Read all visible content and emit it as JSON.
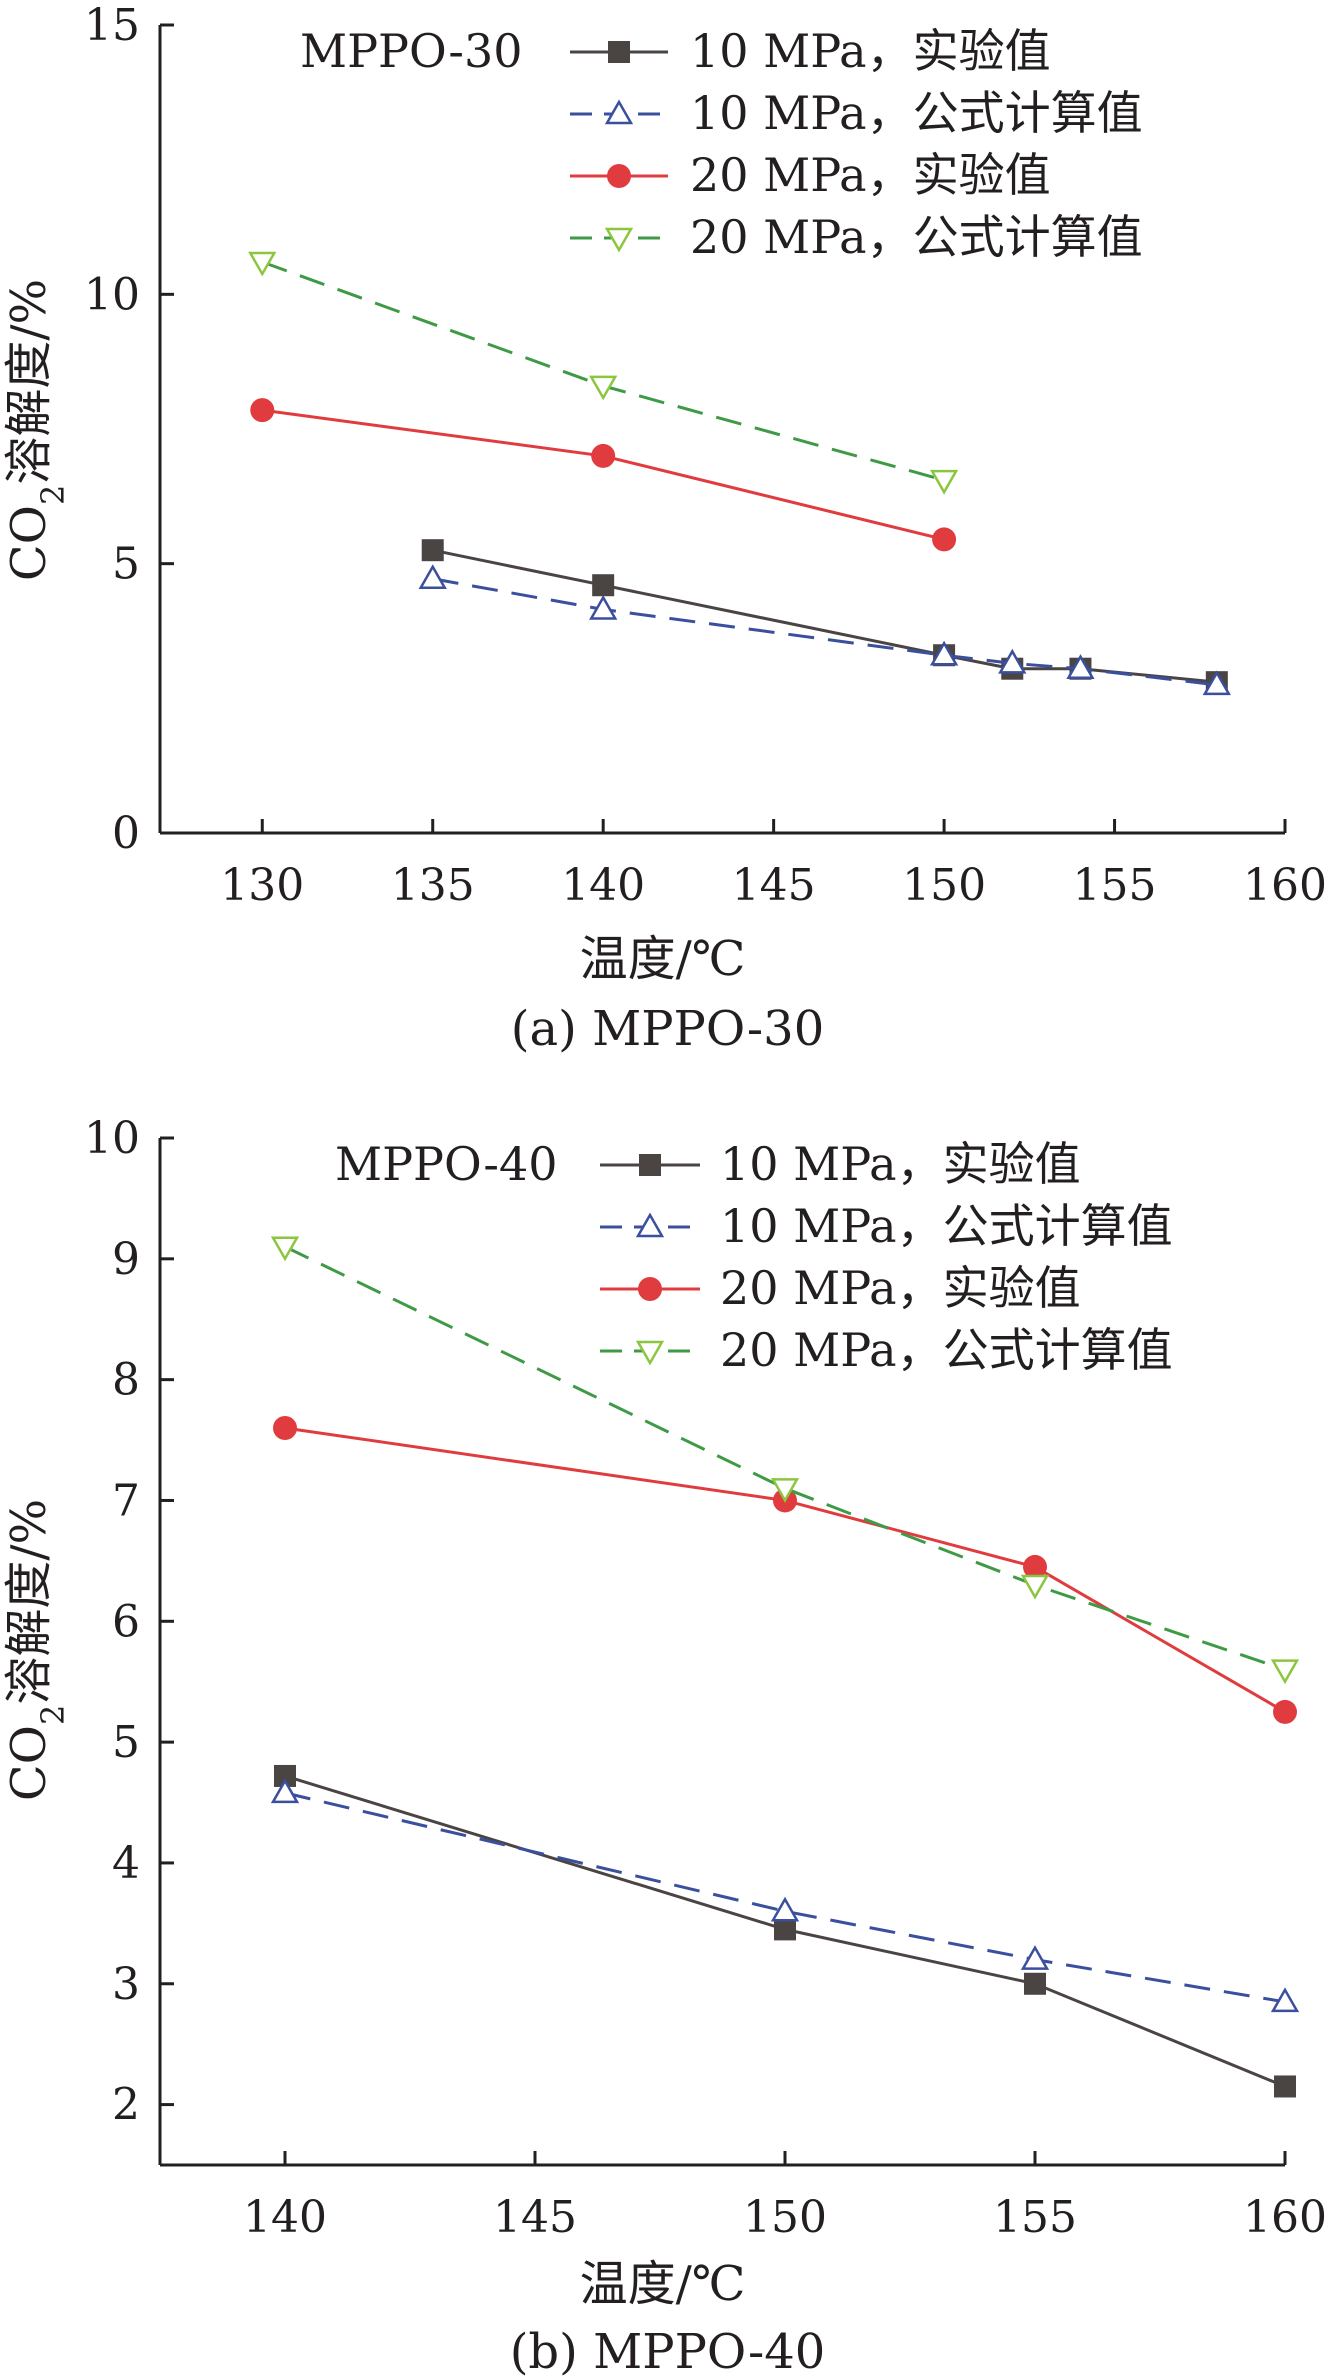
{
  "chart_data": [
    {
      "type": "line",
      "panel_label": "MPPO-30",
      "caption": "(a) MPPO-30",
      "xlabel": "温度/℃",
      "ylabel_main": "CO",
      "ylabel_sub": "2",
      "ylabel_rest": "溶解度/%",
      "xlim": [
        127,
        160
      ],
      "ylim": [
        0,
        15
      ],
      "xticks": [
        130,
        135,
        140,
        145,
        150,
        155,
        160
      ],
      "yticks": [
        0,
        5,
        10,
        15
      ],
      "grid": false,
      "legend_position": "top-right",
      "series": [
        {
          "name": "10 MPa，实验值",
          "color": "#4a4443",
          "dash": "solid",
          "marker": "square",
          "points": [
            [
              135,
              5.25
            ],
            [
              140,
              4.6
            ],
            [
              150,
              3.3
            ],
            [
              152,
              3.05
            ],
            [
              154,
              3.05
            ],
            [
              158,
              2.8
            ]
          ]
        },
        {
          "name": "10 MPa，公式计算值",
          "color": "#3a4f9e",
          "dash": "dashed",
          "marker": "triangle-up",
          "points": [
            [
              135,
              4.72
            ],
            [
              140,
              4.15
            ],
            [
              150,
              3.3
            ],
            [
              152,
              3.15
            ],
            [
              154,
              3.05
            ],
            [
              158,
              2.75
            ]
          ]
        },
        {
          "name": "20 MPa，实验值",
          "color": "#e03c3f",
          "dash": "solid",
          "marker": "circle",
          "points": [
            [
              130,
              7.85
            ],
            [
              140,
              7.0
            ],
            [
              150,
              5.45
            ]
          ]
        },
        {
          "name": "20 MPa，公式计算值",
          "color": "#3f9a46",
          "marker_color": "#8cc63f",
          "dash": "dashed",
          "marker": "triangle-down",
          "points": [
            [
              130,
              10.6
            ],
            [
              140,
              8.3
            ],
            [
              150,
              6.55
            ]
          ]
        }
      ]
    },
    {
      "type": "line",
      "panel_label": "MPPO-40",
      "caption": "(b) MPPO-40",
      "xlabel": "温度/℃",
      "ylabel_main": "CO",
      "ylabel_sub": "2",
      "ylabel_rest": "溶解度/%",
      "xlim": [
        137.5,
        160
      ],
      "ylim": [
        1.5,
        10
      ],
      "xticks": [
        140,
        145,
        150,
        155,
        160
      ],
      "yticks": [
        2,
        3,
        4,
        5,
        6,
        7,
        8,
        9,
        10
      ],
      "grid": false,
      "legend_position": "top-right",
      "series": [
        {
          "name": "10 MPa，实验值",
          "color": "#4a4443",
          "dash": "solid",
          "marker": "square",
          "points": [
            [
              140,
              4.72
            ],
            [
              150,
              3.45
            ],
            [
              155,
              3.0
            ],
            [
              160,
              2.15
            ]
          ]
        },
        {
          "name": "10 MPa，公式计算值",
          "color": "#3a4f9e",
          "dash": "dashed",
          "marker": "triangle-up",
          "points": [
            [
              140,
              4.58
            ],
            [
              150,
              3.6
            ],
            [
              155,
              3.2
            ],
            [
              160,
              2.85
            ]
          ]
        },
        {
          "name": "20 MPa，实验值",
          "color": "#e03c3f",
          "dash": "solid",
          "marker": "circle",
          "points": [
            [
              140,
              7.6
            ],
            [
              150,
              7.0
            ],
            [
              155,
              6.45
            ],
            [
              160,
              5.25
            ]
          ]
        },
        {
          "name": "20 MPa，公式计算值",
          "color": "#3f9a46",
          "marker_color": "#8cc63f",
          "dash": "dashed",
          "marker": "triangle-down",
          "points": [
            [
              140,
              9.1
            ],
            [
              150,
              7.1
            ],
            [
              155,
              6.3
            ],
            [
              160,
              5.6
            ]
          ]
        }
      ]
    }
  ]
}
